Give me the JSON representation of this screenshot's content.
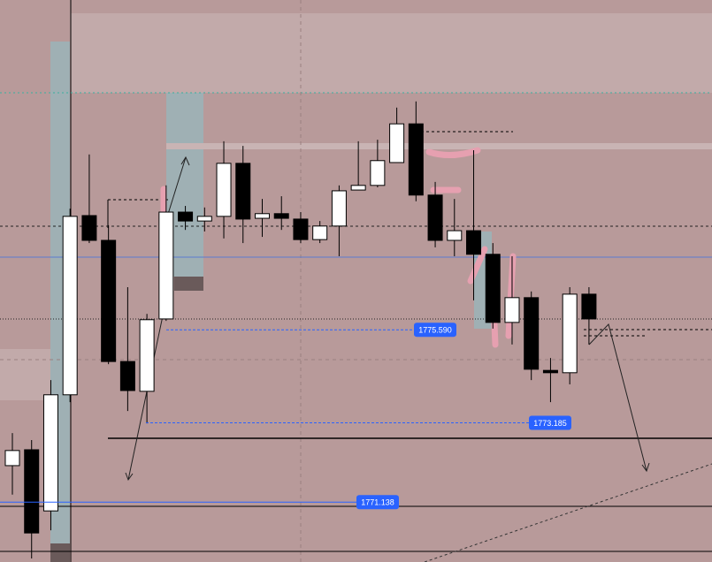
{
  "chart_data": {
    "type": "candlestick",
    "categories": [
      null,
      null,
      null,
      null,
      null,
      null,
      null,
      null,
      null,
      null,
      null,
      null,
      null,
      null,
      null,
      null,
      null,
      null,
      null,
      null,
      null,
      null,
      null,
      null,
      null,
      null,
      null,
      null,
      null,
      null,
      null
    ],
    "open": [
      1772.08,
      1772.49,
      1770.91,
      1773.91,
      1778.54,
      1777.9,
      1774.77,
      1774.0,
      1775.87,
      1778.63,
      1778.4,
      1778.52,
      1779.89,
      1778.47,
      1778.59,
      1778.45,
      1777.92,
      1778.27,
      1779.2,
      1779.32,
      1779.91,
      1780.91,
      1779.07,
      1777.9,
      1778.15,
      1777.54,
      1775.78,
      1776.42,
      1774.54,
      1774.48,
      1776.51
    ],
    "high": [
      1772.92,
      1772.74,
      1774.29,
      1778.72,
      1780.12,
      1778.29,
      1776.69,
      1776.0,
      1779.32,
      1778.79,
      1778.75,
      1780.46,
      1780.34,
      1778.97,
      1779.04,
      1778.63,
      1778.4,
      1779.32,
      1780.46,
      1780.5,
      1781.33,
      1781.49,
      1779.41,
      1778.97,
      1780.23,
      1777.83,
      1777.49,
      1776.58,
      1774.86,
      1776.69,
      1776.69
    ],
    "low": [
      1771.33,
      1769.68,
      1770.41,
      1773.72,
      1777.83,
      1774.7,
      1773.49,
      1773.17,
      1775.82,
      1778.17,
      1778.13,
      1777.95,
      1777.83,
      1777.99,
      1778.17,
      1777.83,
      1777.83,
      1777.49,
      1779.2,
      1779.27,
      1779.91,
      1778.91,
      1777.72,
      1777.49,
      1776.35,
      1775.62,
      1775.21,
      1774.29,
      1773.72,
      1774.18,
      1775.21
    ],
    "close": [
      1772.47,
      1770.34,
      1773.91,
      1778.52,
      1777.9,
      1774.77,
      1774.02,
      1775.85,
      1778.63,
      1778.4,
      1778.52,
      1779.89,
      1778.45,
      1778.59,
      1778.47,
      1777.92,
      1778.27,
      1779.18,
      1779.32,
      1779.96,
      1780.91,
      1779.07,
      1777.9,
      1778.15,
      1777.54,
      1775.78,
      1776.42,
      1774.57,
      1774.48,
      1776.51,
      1775.87
    ],
    "ylim": [
      1769.59,
      1784.11
    ],
    "up_color": "#ffffff",
    "down_color": "#000000",
    "price_labels": [
      {
        "value": 1775.59,
        "label": "1775.590"
      },
      {
        "value": 1773.185,
        "label": "1773.185"
      },
      {
        "value": 1771.138,
        "label": "1771.138"
      }
    ],
    "label_color": "#2962ff"
  }
}
